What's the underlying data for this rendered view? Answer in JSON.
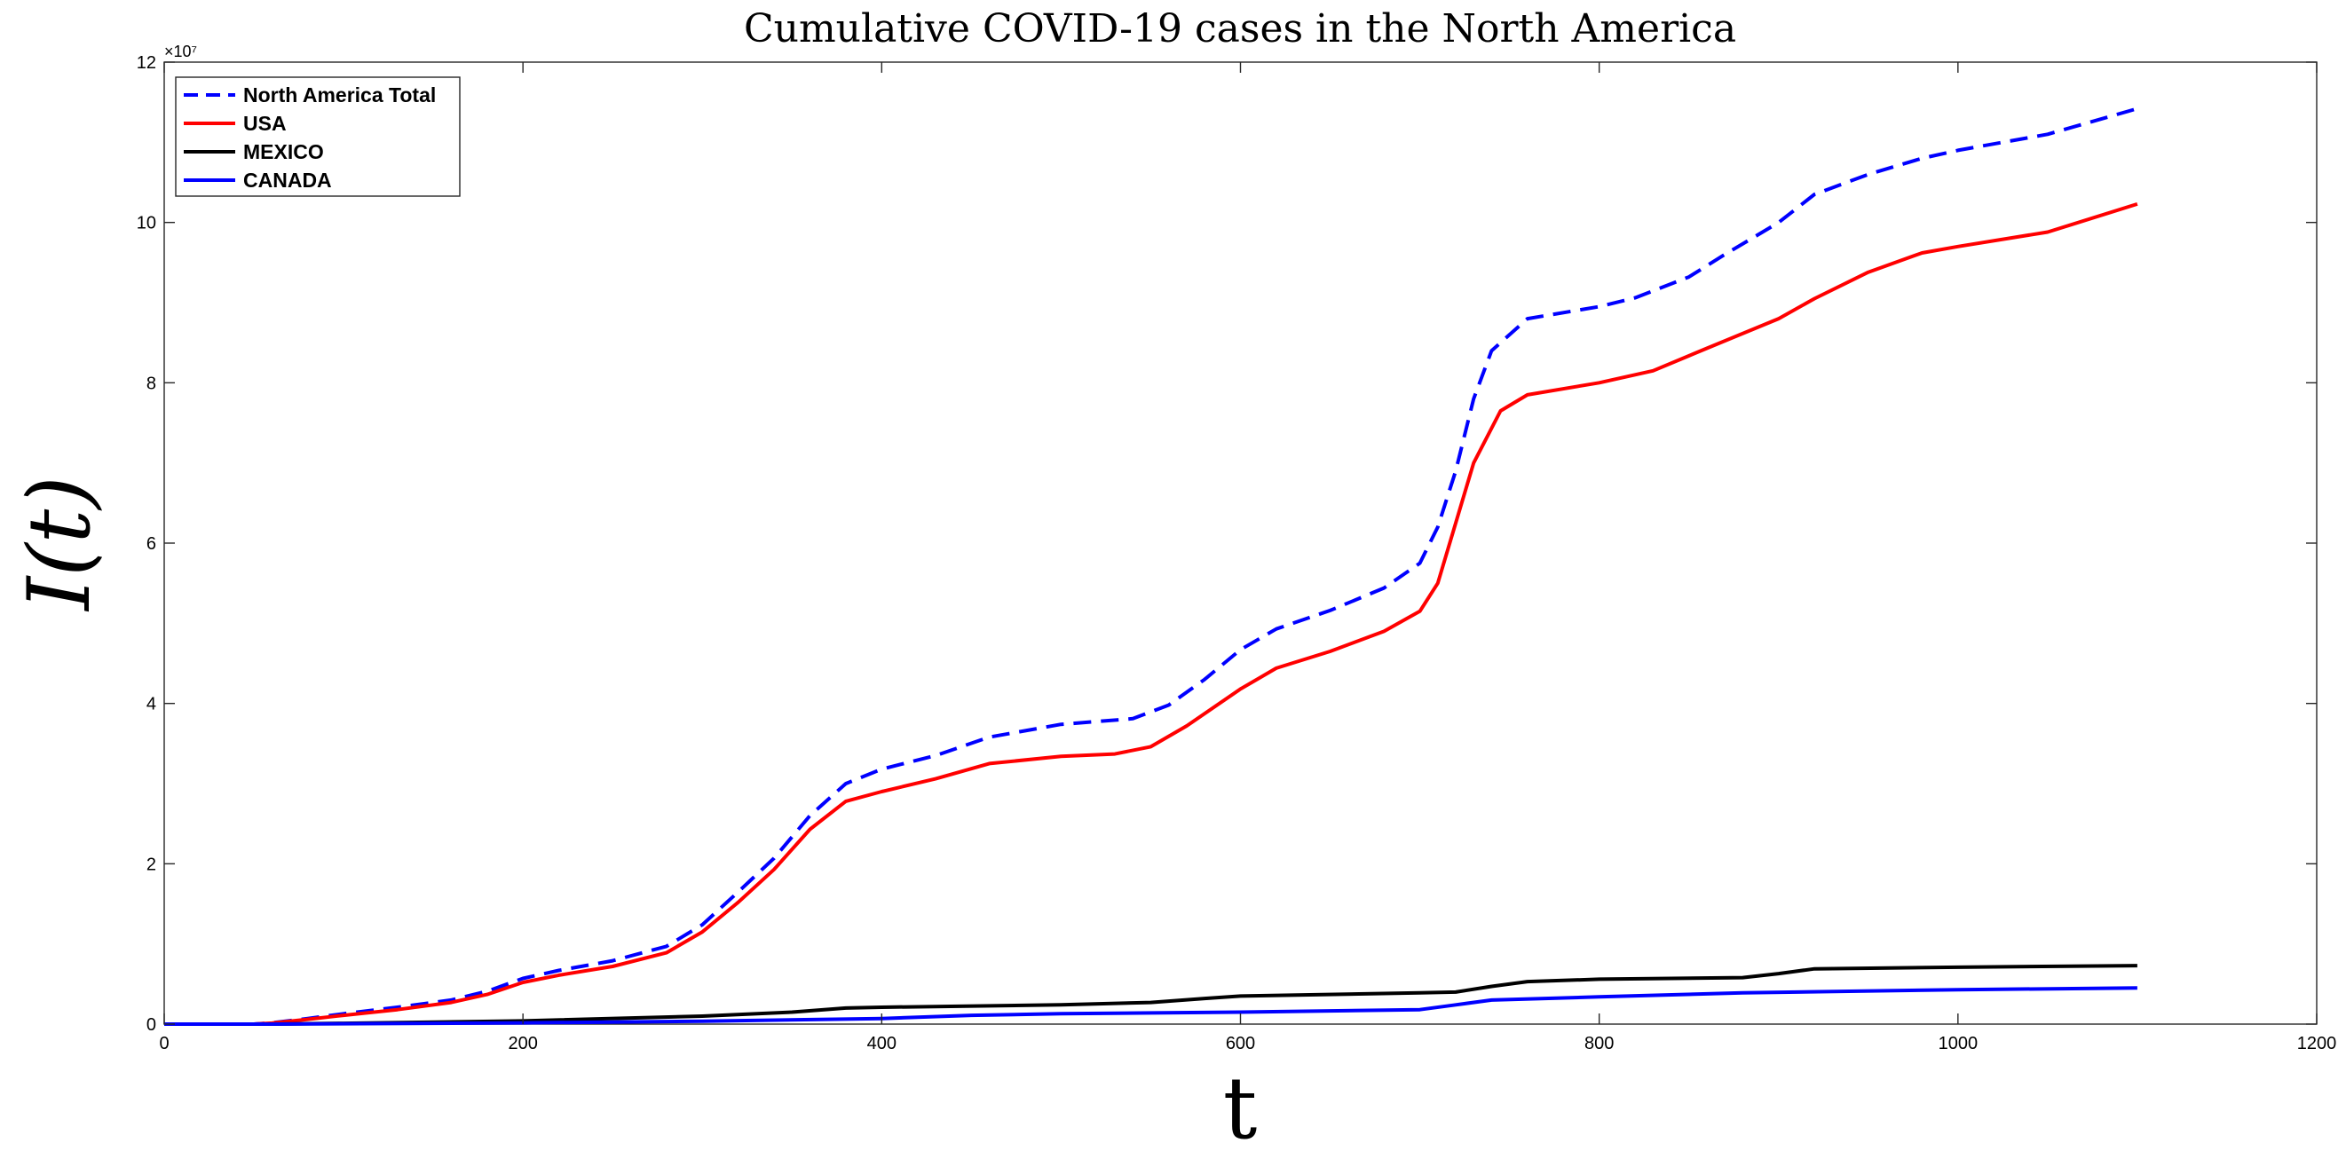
{
  "chart_data": {
    "type": "line",
    "title": "Cumulative COVID-19 cases in the North America",
    "xlabel": "t",
    "ylabel": "I(t)",
    "xlim": [
      0,
      1200
    ],
    "ylim": [
      0,
      120000000
    ],
    "x_ticks": [
      0,
      200,
      400,
      600,
      800,
      1000,
      1200
    ],
    "y_ticks": [
      0,
      20000000,
      40000000,
      60000000,
      80000000,
      100000000,
      120000000
    ],
    "y_tick_labels": [
      "0",
      "2",
      "4",
      "6",
      "8",
      "10",
      "12"
    ],
    "y_exponent_label": "×10⁷",
    "legend_position": "top-left",
    "grid": false,
    "series": [
      {
        "name": "North America Total",
        "color": "#0000ff",
        "style": "dashed",
        "points": [
          [
            0,
            0
          ],
          [
            50,
            0
          ],
          [
            60,
            150000
          ],
          [
            80,
            700000
          ],
          [
            100,
            1300000
          ],
          [
            130,
            2100000
          ],
          [
            160,
            3000000
          ],
          [
            180,
            4100000
          ],
          [
            200,
            5700000
          ],
          [
            220,
            6700000
          ],
          [
            250,
            7900000
          ],
          [
            280,
            9700000
          ],
          [
            300,
            12400000
          ],
          [
            320,
            16500000
          ],
          [
            340,
            20700000
          ],
          [
            360,
            26000000
          ],
          [
            380,
            30000000
          ],
          [
            400,
            31800000
          ],
          [
            430,
            33500000
          ],
          [
            460,
            35800000
          ],
          [
            500,
            37400000
          ],
          [
            540,
            38100000
          ],
          [
            560,
            39800000
          ],
          [
            580,
            43000000
          ],
          [
            600,
            46700000
          ],
          [
            620,
            49300000
          ],
          [
            650,
            51600000
          ],
          [
            680,
            54400000
          ],
          [
            700,
            57500000
          ],
          [
            710,
            62000000
          ],
          [
            720,
            69000000
          ],
          [
            730,
            78000000
          ],
          [
            740,
            84000000
          ],
          [
            760,
            88000000
          ],
          [
            800,
            89500000
          ],
          [
            820,
            90600000
          ],
          [
            850,
            93200000
          ],
          [
            870,
            96000000
          ],
          [
            900,
            100000000
          ],
          [
            920,
            103500000
          ],
          [
            950,
            106000000
          ],
          [
            980,
            108000000
          ],
          [
            1000,
            109000000
          ],
          [
            1050,
            111000000
          ],
          [
            1100,
            114200000
          ]
        ]
      },
      {
        "name": "USA",
        "color": "#ff0000",
        "style": "solid",
        "points": [
          [
            0,
            0
          ],
          [
            50,
            0
          ],
          [
            60,
            120000
          ],
          [
            80,
            600000
          ],
          [
            100,
            1100000
          ],
          [
            130,
            1800000
          ],
          [
            160,
            2700000
          ],
          [
            180,
            3700000
          ],
          [
            200,
            5200000
          ],
          [
            220,
            6100000
          ],
          [
            250,
            7200000
          ],
          [
            280,
            8900000
          ],
          [
            300,
            11500000
          ],
          [
            320,
            15200000
          ],
          [
            340,
            19300000
          ],
          [
            360,
            24300000
          ],
          [
            380,
            27800000
          ],
          [
            400,
            29000000
          ],
          [
            430,
            30600000
          ],
          [
            460,
            32500000
          ],
          [
            500,
            33400000
          ],
          [
            530,
            33700000
          ],
          [
            550,
            34600000
          ],
          [
            570,
            37200000
          ],
          [
            600,
            41800000
          ],
          [
            620,
            44400000
          ],
          [
            650,
            46500000
          ],
          [
            680,
            49000000
          ],
          [
            700,
            51500000
          ],
          [
            710,
            55000000
          ],
          [
            720,
            62500000
          ],
          [
            730,
            70000000
          ],
          [
            745,
            76500000
          ],
          [
            760,
            78500000
          ],
          [
            800,
            80000000
          ],
          [
            830,
            81500000
          ],
          [
            860,
            84300000
          ],
          [
            900,
            88000000
          ],
          [
            920,
            90500000
          ],
          [
            950,
            93800000
          ],
          [
            980,
            96200000
          ],
          [
            1000,
            97000000
          ],
          [
            1050,
            98800000
          ],
          [
            1100,
            102300000
          ]
        ]
      },
      {
        "name": " MEXICO",
        "color": "#000000",
        "style": "solid",
        "points": [
          [
            0,
            0
          ],
          [
            60,
            0
          ],
          [
            100,
            100000
          ],
          [
            200,
            400000
          ],
          [
            300,
            1000000
          ],
          [
            350,
            1500000
          ],
          [
            380,
            2000000
          ],
          [
            400,
            2100000
          ],
          [
            500,
            2400000
          ],
          [
            550,
            2700000
          ],
          [
            580,
            3200000
          ],
          [
            600,
            3500000
          ],
          [
            700,
            3900000
          ],
          [
            720,
            4000000
          ],
          [
            740,
            4700000
          ],
          [
            760,
            5300000
          ],
          [
            800,
            5600000
          ],
          [
            880,
            5800000
          ],
          [
            900,
            6300000
          ],
          [
            920,
            6900000
          ],
          [
            1000,
            7100000
          ],
          [
            1100,
            7300000
          ]
        ]
      },
      {
        "name": "CANADA",
        "color": "#0000ff",
        "style": "solid",
        "points": [
          [
            0,
            0
          ],
          [
            60,
            0
          ],
          [
            200,
            150000
          ],
          [
            300,
            350000
          ],
          [
            400,
            700000
          ],
          [
            450,
            1100000
          ],
          [
            500,
            1300000
          ],
          [
            600,
            1500000
          ],
          [
            700,
            1800000
          ],
          [
            720,
            2400000
          ],
          [
            740,
            3000000
          ],
          [
            800,
            3400000
          ],
          [
            880,
            3900000
          ],
          [
            1000,
            4300000
          ],
          [
            1100,
            4500000
          ]
        ]
      }
    ]
  }
}
